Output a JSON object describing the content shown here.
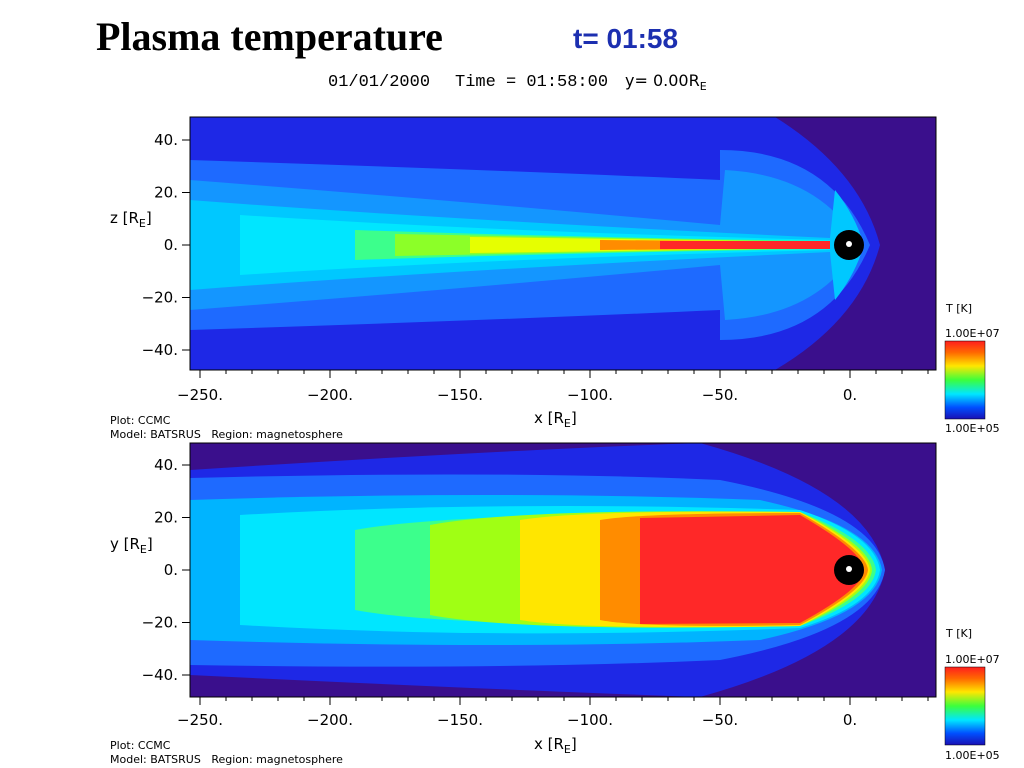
{
  "slide": {
    "title": "Plasma temperature",
    "time": "t= 01:58"
  },
  "header": {
    "date": "01/01/2000",
    "time_label": "Time = 01:58:00",
    "position": "y= 0.00R",
    "position_sub": "E"
  },
  "x_axis": {
    "label": "x [R",
    "label_sub": "E",
    "label_end": "]",
    "ticks": [
      "−250.",
      "−200.",
      "−150.",
      "−100.",
      "−50.",
      "0."
    ]
  },
  "y_ticks": [
    "40.",
    "20.",
    "0.",
    "−20.",
    "−40."
  ],
  "panels": [
    {
      "axis_label": "z [R",
      "axis_label_sub": "E",
      "axis_label_end": "]"
    },
    {
      "axis_label": "y [R",
      "axis_label_sub": "E",
      "axis_label_end": "]"
    }
  ],
  "colorbar": {
    "title": "T [K]",
    "max": "1.00E+07",
    "min": "1.00E+05"
  },
  "footer": {
    "plot": "Plot: CCMC",
    "model": "Model: BATSRUS   Region: magnetosphere"
  }
}
